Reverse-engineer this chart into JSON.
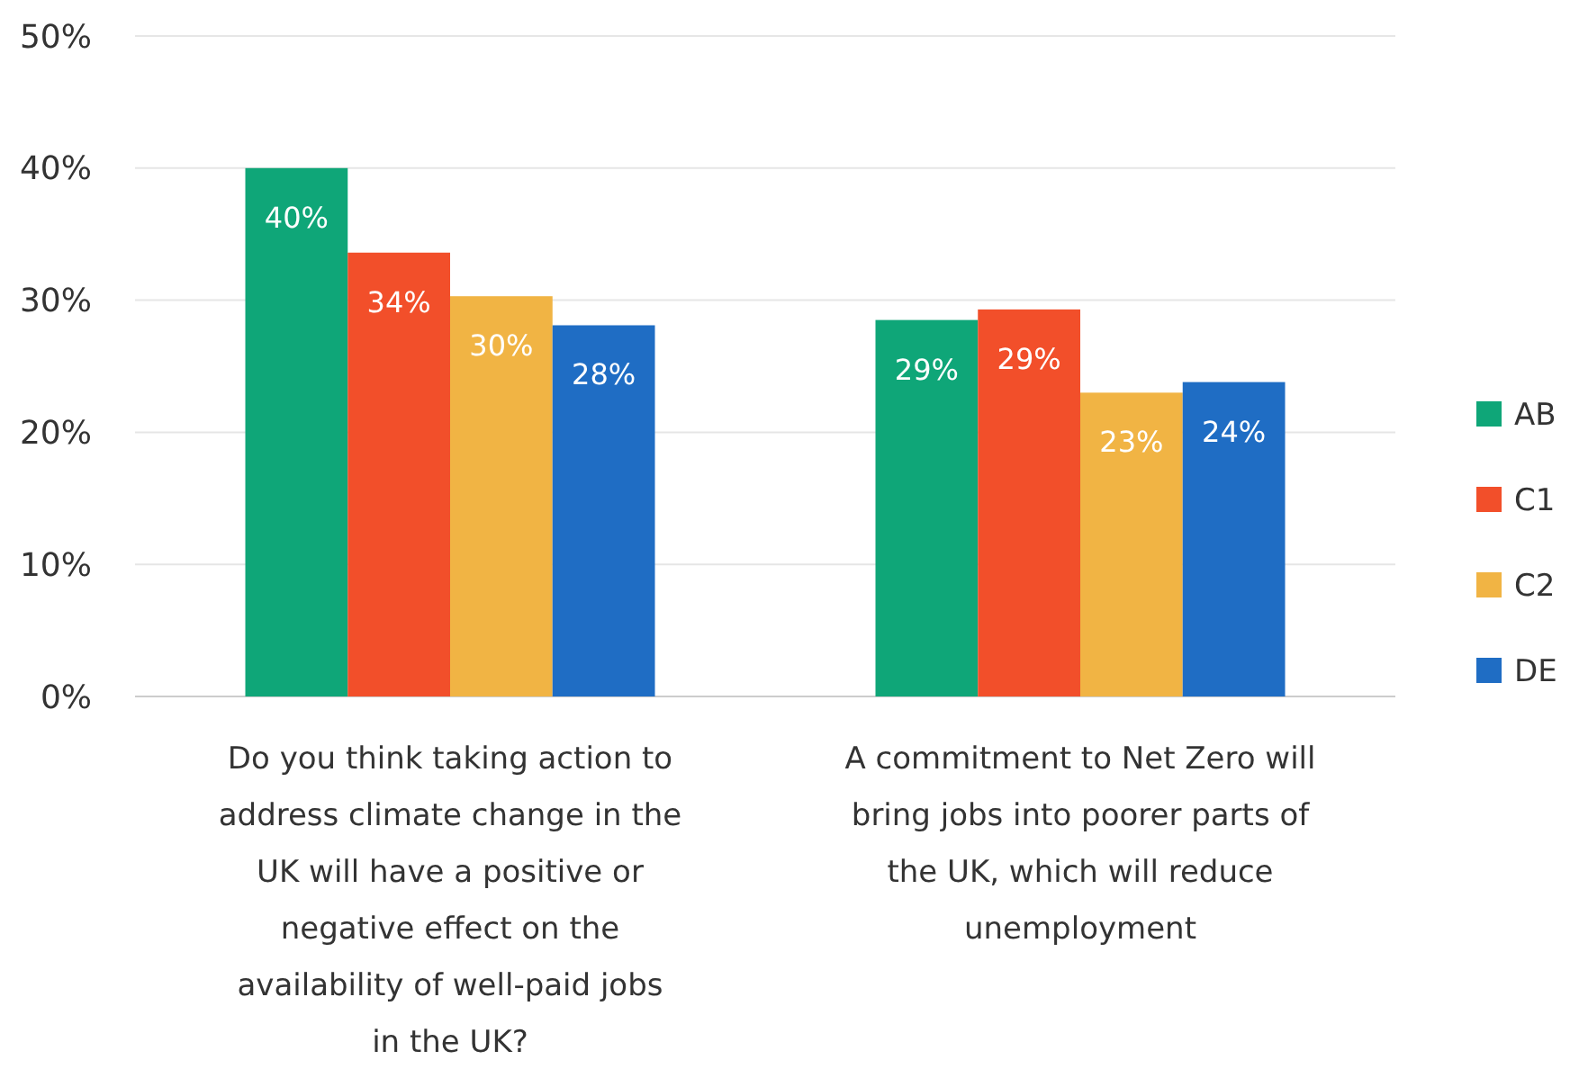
{
  "chart_data": {
    "type": "bar",
    "categories": [
      "Do you think taking action to address climate change in the UK will have a positive or negative effect on the availability of well-paid jobs in the UK?",
      "A commitment to Net Zero will bring jobs into poorer parts of the UK, which will reduce unemployment"
    ],
    "series": [
      {
        "name": "AB",
        "color": "#0fa678",
        "values": [
          40,
          28.5
        ],
        "value_labels": [
          "40%",
          "29%"
        ]
      },
      {
        "name": "C1",
        "color": "#f24f2a",
        "values": [
          33.6,
          29.3
        ],
        "value_labels": [
          "34%",
          "29%"
        ]
      },
      {
        "name": "C2",
        "color": "#f1b444",
        "values": [
          30.3,
          23
        ],
        "value_labels": [
          "30%",
          "23%"
        ]
      },
      {
        "name": "DE",
        "color": "#1f6dc4",
        "values": [
          28.1,
          23.8
        ],
        "value_labels": [
          "28%",
          "24%"
        ]
      }
    ],
    "ylim": [
      0,
      50
    ],
    "yticks": [
      {
        "value": 0,
        "label": "0%"
      },
      {
        "value": 10,
        "label": "10%"
      },
      {
        "value": 20,
        "label": "20%"
      },
      {
        "value": 30,
        "label": "30%"
      },
      {
        "value": 40,
        "label": "40%"
      },
      {
        "value": 50,
        "label": "50%"
      }
    ],
    "grid": "y",
    "legend": "right"
  }
}
